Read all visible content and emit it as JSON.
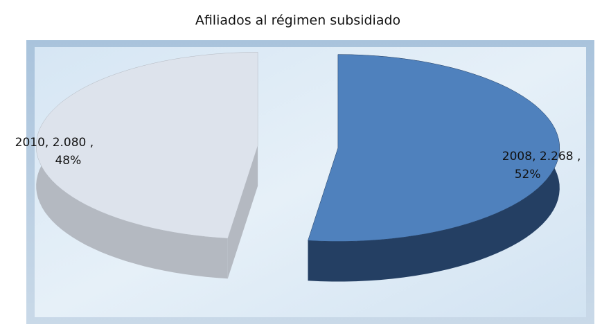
{
  "chart_data": {
    "type": "pie",
    "title": "Afiliados al régimen subsidiado",
    "categories": [
      "2008",
      "2010"
    ],
    "values": [
      2268,
      2080
    ],
    "value_labels": [
      "2.268 ,",
      "2.080 ,"
    ],
    "label_separator": ", ",
    "percentages": [
      52,
      48
    ],
    "percentage_labels": [
      "52%",
      "48%"
    ],
    "colors": [
      "#4f81bd",
      "#dde3ec"
    ],
    "side_colors": [
      "#243f63",
      "#b4b9c1"
    ]
  }
}
